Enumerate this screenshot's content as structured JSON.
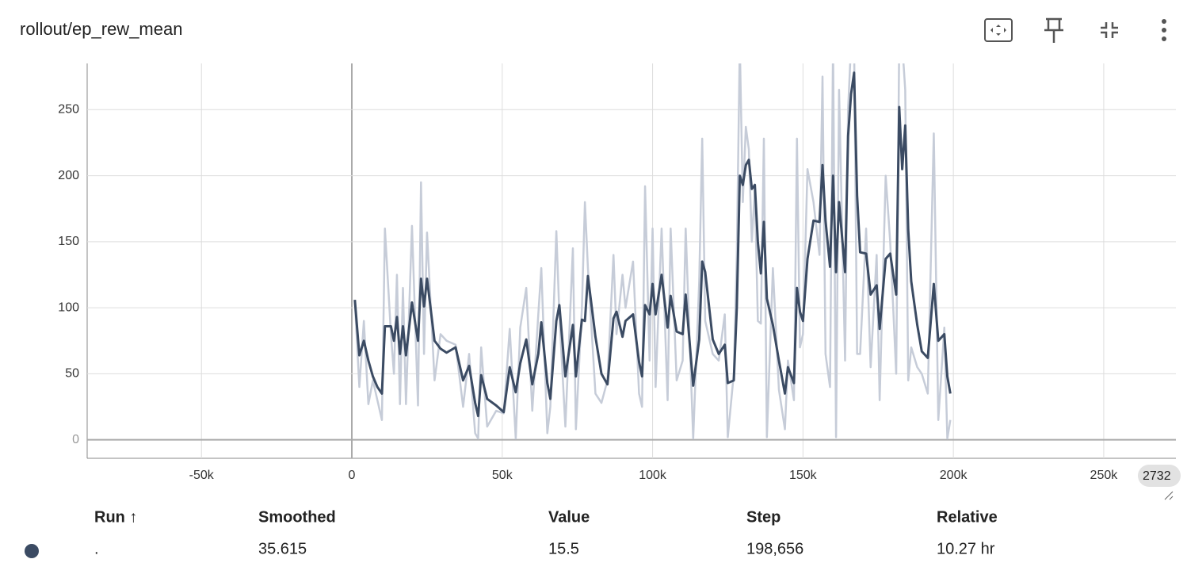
{
  "chart_data": {
    "type": "line",
    "title": "rollout/ep_rew_mean",
    "x": [
      1000,
      2500,
      4000,
      5500,
      7000,
      8500,
      10000,
      11000,
      13000,
      14000,
      15000,
      16000,
      17000,
      18000,
      20000,
      22000,
      23000,
      24000,
      25000,
      27500,
      29500,
      31500,
      34500,
      37000,
      39000,
      41000,
      42000,
      43000,
      45000,
      48000,
      50500,
      52500,
      54500,
      56000,
      58000,
      60000,
      62000,
      63000,
      65000,
      66000,
      68000,
      69000,
      71000,
      73500,
      74500,
      76500,
      77500,
      78500,
      81000,
      83000,
      85000,
      87000,
      88000,
      90000,
      91000,
      93500,
      95500,
      96500,
      97500,
      99000,
      100000,
      101000,
      103000,
      105000,
      106000,
      108000,
      110000,
      111000,
      113500,
      115500,
      116500,
      117500,
      120000,
      122000,
      124000,
      125000,
      127000,
      128000,
      129000,
      130000,
      131000,
      132000,
      133000,
      134000,
      135000,
      136000,
      137000,
      138000,
      140000,
      142000,
      144000,
      145000,
      147000,
      148000,
      149000,
      150000,
      151500,
      153500,
      155500,
      156500,
      157500,
      159000,
      160000,
      161000,
      162000,
      164000,
      165000,
      166000,
      167000,
      168000,
      169000,
      171000,
      172500,
      174500,
      175500,
      177500,
      179000,
      181000,
      182000,
      183000,
      184000,
      185000,
      186000,
      188000,
      189500,
      191500,
      193500,
      195000,
      197000,
      198000,
      199000
    ],
    "series": [
      {
        "color": "#c6ccd8",
        "values": [
          105,
          40,
          90,
          27,
          45,
          30,
          15,
          160,
          80,
          50,
          125,
          27,
          115,
          27,
          162,
          26,
          195,
          65,
          157,
          45,
          80,
          75,
          72,
          25,
          65,
          5,
          1,
          70,
          10,
          22,
          20,
          84,
          1,
          85,
          115,
          22,
          95,
          130,
          5,
          25,
          158,
          95,
          10,
          145,
          8,
          100,
          180,
          130,
          35,
          28,
          45,
          140,
          80,
          125,
          100,
          135,
          35,
          25,
          192,
          60,
          160,
          40,
          160,
          30,
          160,
          45,
          60,
          160,
          1,
          120,
          228,
          90,
          65,
          60,
          95,
          2,
          50,
          140,
          300,
          180,
          237,
          220,
          150,
          190,
          90,
          88,
          228,
          2,
          130,
          38,
          8,
          60,
          30,
          228,
          70,
          80,
          205,
          180,
          140,
          275,
          65,
          40,
          300,
          2,
          265,
          60,
          250,
          300,
          300,
          65,
          65,
          160,
          55,
          140,
          30,
          200,
          150,
          50,
          300,
          300,
          265,
          45,
          70,
          55,
          50,
          35,
          232,
          15,
          85,
          1,
          15
        ]
      },
      {
        "color": "#3b4b63",
        "values": [
          106,
          64,
          75,
          60,
          48,
          40,
          35,
          86,
          86,
          75,
          93,
          65,
          86,
          64,
          104,
          75,
          122,
          101,
          122,
          75,
          69,
          66,
          70,
          45,
          56,
          28,
          18,
          49,
          31,
          26,
          21,
          55,
          36,
          58,
          76,
          42,
          65,
          89,
          43,
          31,
          90,
          102,
          48,
          87,
          48,
          91,
          90,
          124,
          78,
          50,
          42,
          92,
          97,
          78,
          90,
          95,
          59,
          48,
          102,
          95,
          118,
          95,
          125,
          85,
          109,
          82,
          80,
          110,
          41,
          76,
          135,
          127,
          76,
          65,
          72,
          43,
          45,
          100,
          200,
          193,
          208,
          212,
          190,
          193,
          150,
          126,
          165,
          107,
          87,
          60,
          35,
          55,
          43,
          115,
          97,
          90,
          137,
          166,
          165,
          208,
          166,
          131,
          200,
          127,
          180,
          127,
          230,
          262,
          278,
          185,
          142,
          141,
          110,
          117,
          84,
          137,
          141,
          110,
          252,
          205,
          238,
          159,
          120,
          87,
          67,
          62,
          118,
          75,
          80,
          48,
          35
        ]
      }
    ],
    "xlim": [
      -88000,
      274000
    ],
    "ylim": [
      -14,
      285
    ],
    "xticks": [
      {
        "value": -50000,
        "label": "-50k"
      },
      0,
      {
        "value": 50000,
        "label": "50k"
      },
      {
        "value": 100000,
        "label": "100k"
      },
      {
        "value": 150000,
        "label": "150k"
      },
      {
        "value": 200000,
        "label": "200k"
      },
      {
        "value": 250000,
        "label": "250k"
      }
    ],
    "yticks": [
      0,
      50,
      100,
      150,
      200,
      250
    ],
    "grid": true,
    "annotations": [
      "2732"
    ]
  },
  "table": {
    "headers": [
      "Run ↑",
      "Smoothed",
      "Value",
      "Step",
      "Relative"
    ],
    "rows": [
      [
        ".",
        "35.615",
        "15.5",
        "198,656",
        "10.27 hr"
      ]
    ]
  }
}
